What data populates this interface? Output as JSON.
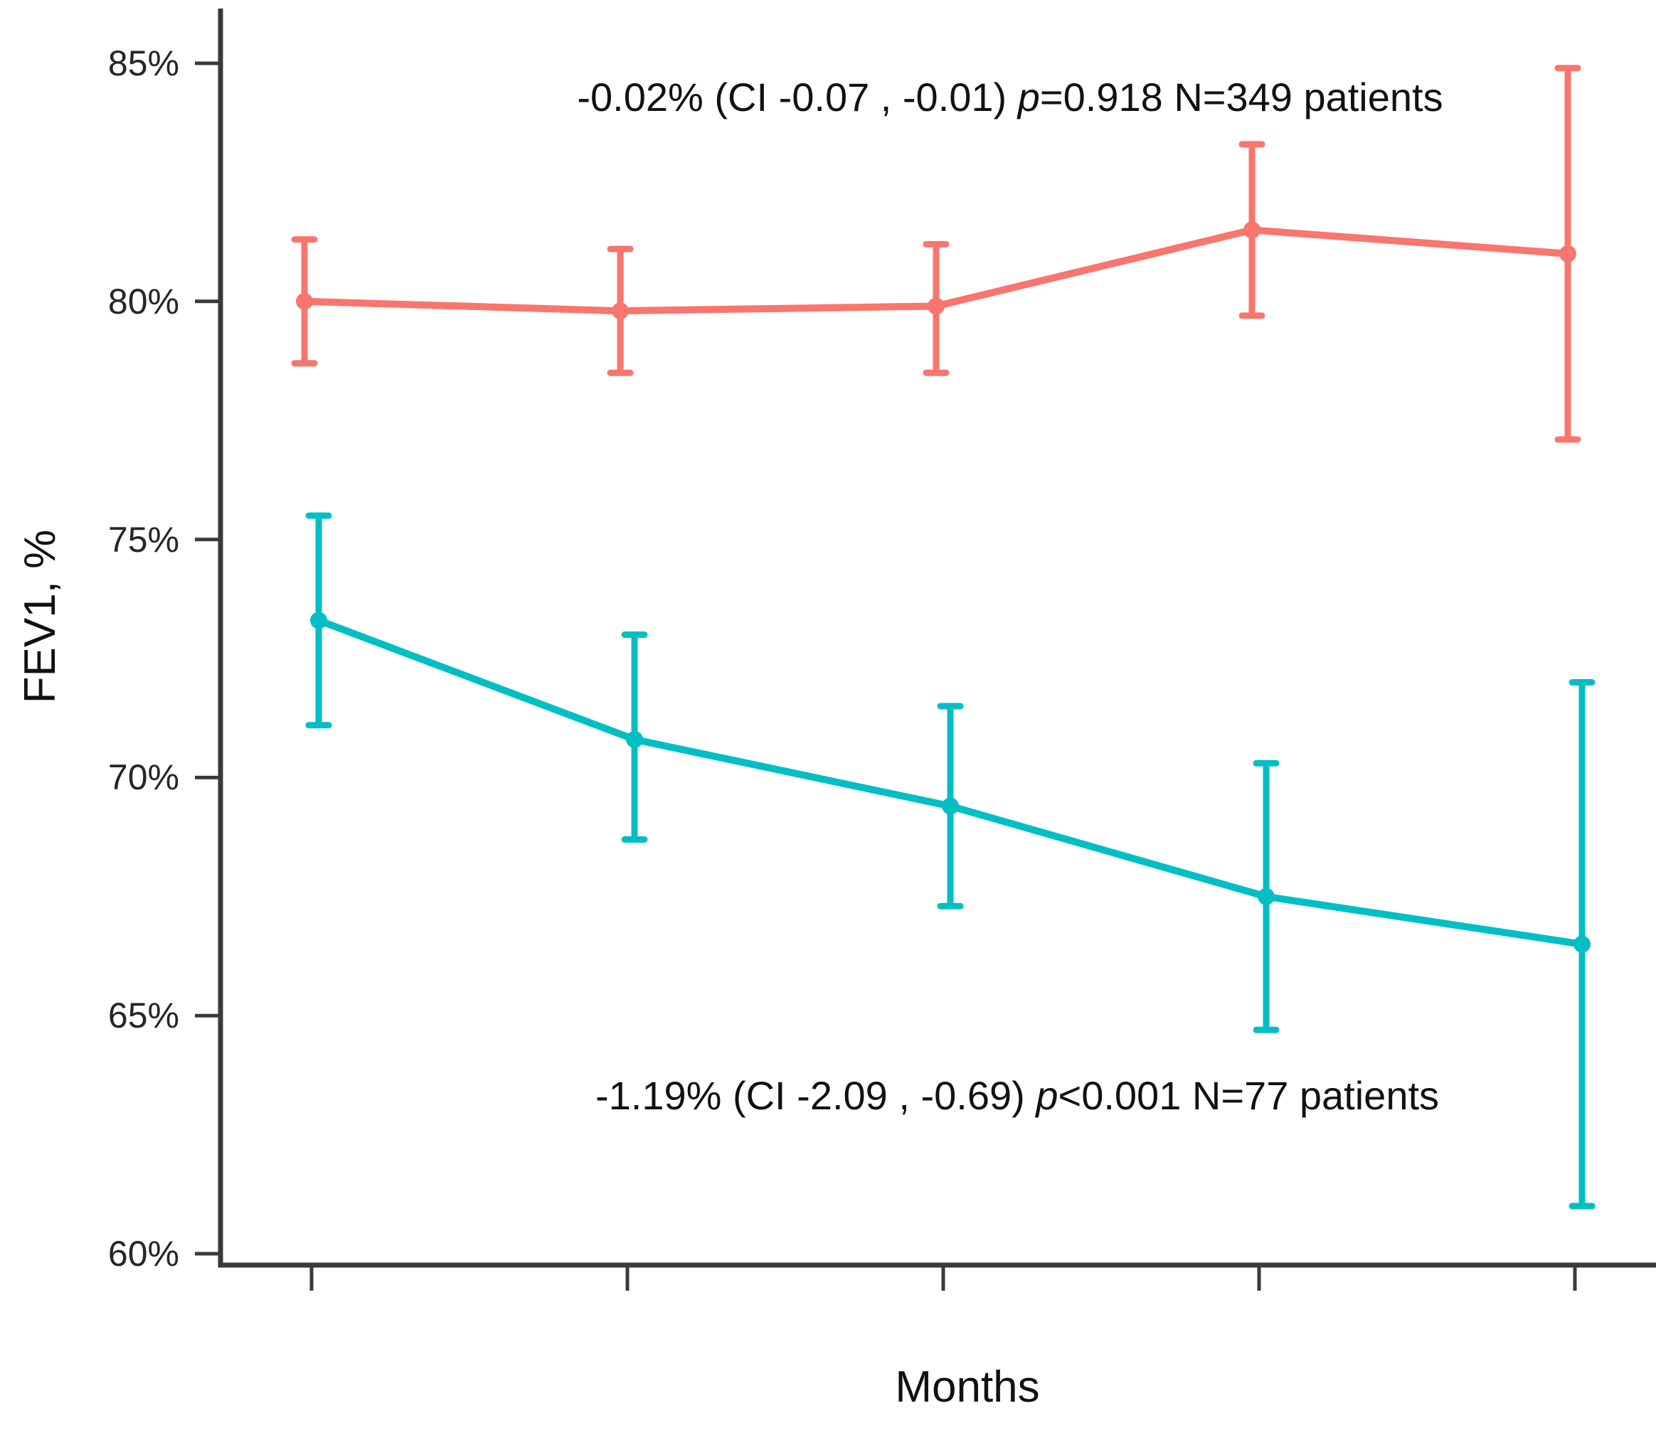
{
  "chart_data": {
    "type": "line",
    "title": "",
    "grid": false,
    "legend_position": "none",
    "x": [
      1,
      2,
      3,
      4,
      5
    ],
    "x_tick_labels": [
      "",
      "",
      "",
      "",
      ""
    ],
    "x_axis": {
      "label": "Months"
    },
    "y_axis": {
      "label": "FEV1, %",
      "range": [
        60,
        85
      ],
      "unit": "%",
      "ticks": [
        {
          "value": 85,
          "label": "85%"
        },
        {
          "value": 80,
          "label": "80%"
        },
        {
          "value": 75,
          "label": "75%"
        },
        {
          "value": 70,
          "label": "70%"
        },
        {
          "value": 65,
          "label": "65%"
        },
        {
          "value": 60,
          "label": "60%"
        }
      ]
    },
    "series": [
      {
        "name": "N=349 patients group",
        "color": "#F8766D",
        "n_patients": 349,
        "values": [
          80.0,
          79.8,
          79.9,
          81.5,
          81.0
        ],
        "ci_low": [
          78.7,
          78.5,
          78.5,
          79.7,
          77.1
        ],
        "ci_high": [
          81.3,
          81.1,
          81.2,
          83.3,
          84.9
        ]
      },
      {
        "name": "N=77 patients group",
        "color": "#00BFC4",
        "n_patients": 77,
        "values": [
          73.3,
          70.8,
          69.4,
          67.5,
          66.5
        ],
        "ci_low": [
          71.1,
          68.7,
          67.3,
          64.7,
          61.0
        ],
        "ci_high": [
          75.5,
          73.0,
          71.5,
          70.3,
          72.0
        ]
      }
    ],
    "annotations": [
      {
        "segments": [
          "-0.02% (CI -0.07 , -0.01) ",
          "p",
          "=0.918 N=349 patients"
        ]
      },
      {
        "segments": [
          "-1.19% (CI -2.09 , -0.69) ",
          "p",
          "<0.001 N=77 patients"
        ]
      }
    ],
    "axis_color": "#3a3a3a"
  }
}
